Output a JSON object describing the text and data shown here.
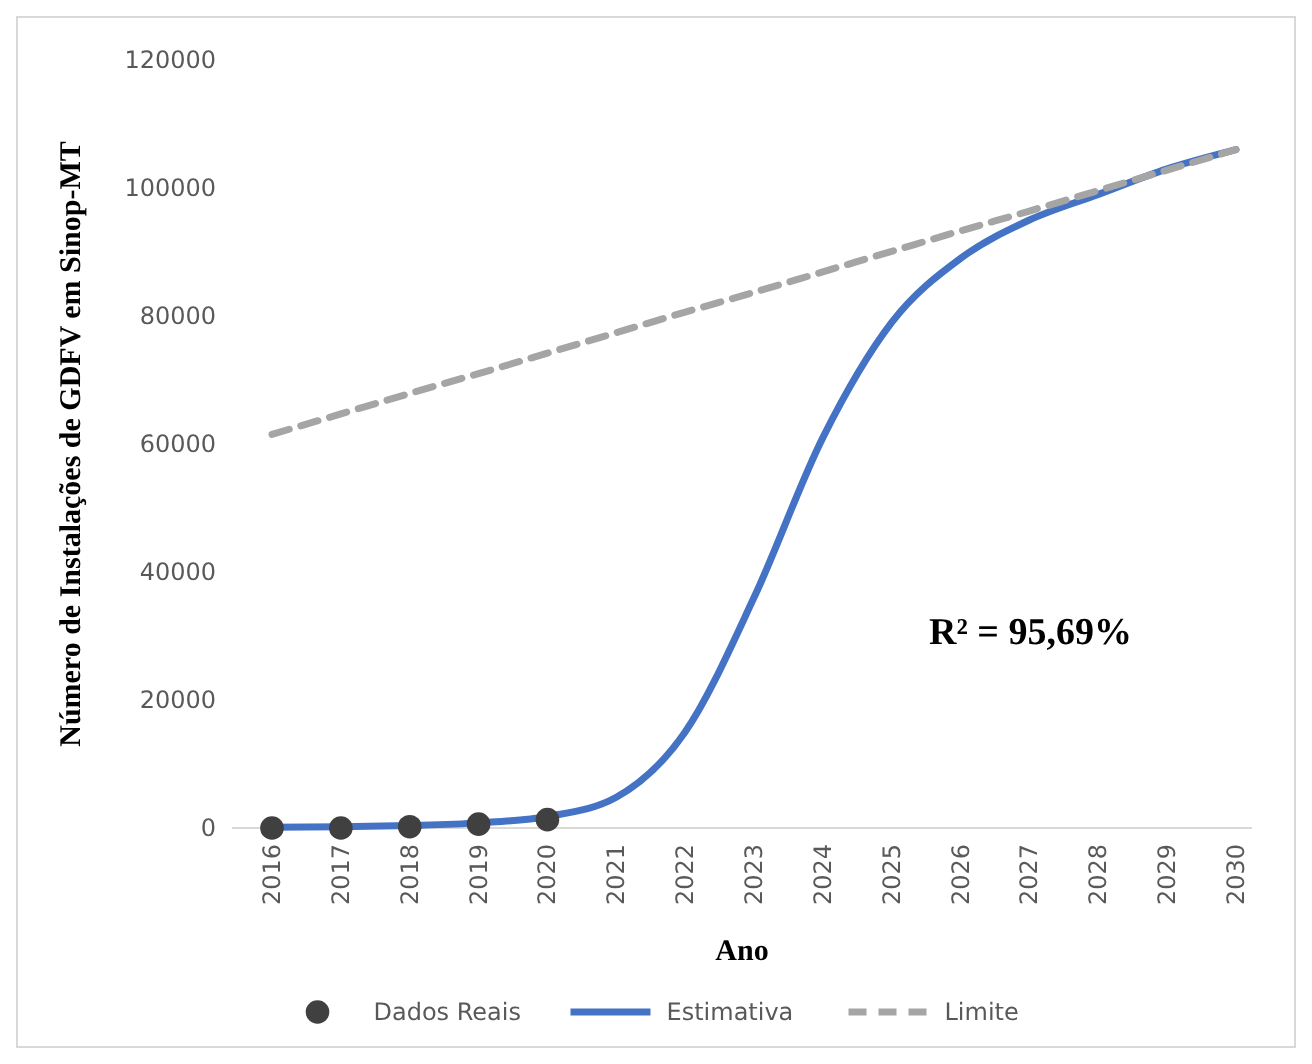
{
  "chart_data": {
    "type": "line",
    "xlabel": "Ano",
    "ylabel": "Número de Instalações de GDFV em Sinop-MT",
    "categories": [
      "2016",
      "2017",
      "2018",
      "2019",
      "2020",
      "2021",
      "2022",
      "2023",
      "2024",
      "2025",
      "2026",
      "2027",
      "2028",
      "2029",
      "2030"
    ],
    "ylim": [
      0,
      120000
    ],
    "yticks": [
      0,
      20000,
      40000,
      60000,
      80000,
      100000,
      120000
    ],
    "grid": false,
    "legend": "bottom",
    "annotations": [
      "R² = 95,69%"
    ],
    "series": [
      {
        "name": "Dados Reais",
        "type": "scatter",
        "marker": "circle",
        "color": "#404040",
        "values": [
          0,
          0,
          200,
          600,
          1300,
          null,
          null,
          null,
          null,
          null,
          null,
          null,
          null,
          null,
          null
        ]
      },
      {
        "name": "Estimativa",
        "line_style": "solid",
        "color": "#4472c4",
        "values": [
          100,
          200,
          400,
          800,
          1800,
          4800,
          15000,
          36000,
          61000,
          79000,
          89000,
          95000,
          99000,
          103000,
          106000
        ]
      },
      {
        "name": "Limite",
        "line_style": "dashed",
        "color": "#a5a5a5",
        "values": [
          61500,
          64700,
          67900,
          71000,
          74200,
          77400,
          80600,
          83700,
          86900,
          90100,
          93300,
          96400,
          99600,
          102800,
          106000
        ]
      }
    ]
  }
}
